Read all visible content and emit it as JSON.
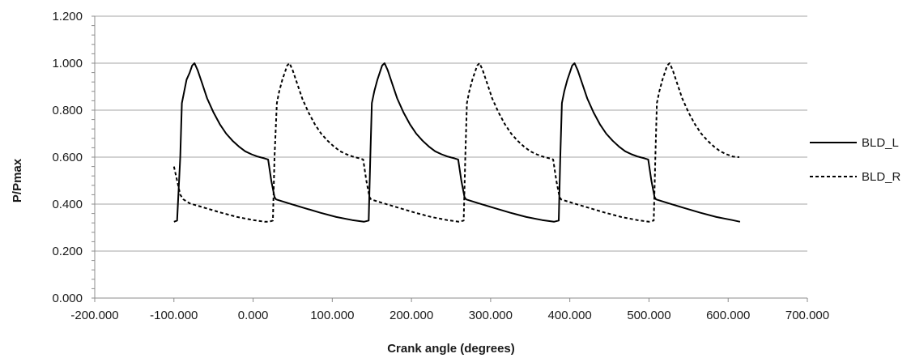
{
  "chart_data": {
    "type": "line",
    "title": "",
    "xlabel": "Crank angle (degrees)",
    "ylabel": "P/Pmax",
    "xlim": [
      -200,
      700
    ],
    "ylim": [
      0,
      1.2
    ],
    "x_ticks": [
      "-200.000",
      "-100.000",
      "0.000",
      "100.000",
      "200.000",
      "300.000",
      "400.000",
      "500.000",
      "600.000",
      "700.000"
    ],
    "y_ticks": [
      "0.000",
      "0.200",
      "0.400",
      "0.600",
      "0.800",
      "1.000",
      "1.200"
    ],
    "grid": "horizontal",
    "legend_position": "right",
    "series": [
      {
        "name": "BLD_L",
        "line_style": "solid",
        "color": "#000000",
        "x": [
          -100,
          -96,
          -92,
          -90,
          -87,
          -84,
          -80,
          -77,
          -74,
          -70,
          -64,
          -58,
          -50,
          -42,
          -34,
          -26,
          -18,
          -10,
          -2,
          6,
          14,
          19,
          23,
          27,
          29,
          45,
          65,
          85,
          105,
          125,
          140,
          146,
          148,
          150,
          153,
          157,
          160,
          163,
          166,
          170,
          176,
          182,
          190,
          198,
          206,
          214,
          222,
          230,
          238,
          246,
          254,
          259,
          263,
          267,
          269,
          285,
          305,
          325,
          345,
          365,
          380,
          386,
          388,
          390,
          393,
          397,
          400,
          403,
          406,
          410,
          416,
          422,
          430,
          438,
          446,
          454,
          462,
          470,
          478,
          486,
          494,
          499,
          503,
          507,
          509,
          525,
          545,
          565,
          585,
          605,
          615
        ],
        "y": [
          0.325,
          0.33,
          0.6,
          0.83,
          0.88,
          0.93,
          0.96,
          0.99,
          1.0,
          0.97,
          0.91,
          0.85,
          0.79,
          0.74,
          0.7,
          0.67,
          0.645,
          0.625,
          0.612,
          0.602,
          0.595,
          0.59,
          0.5,
          0.43,
          0.42,
          0.403,
          0.383,
          0.363,
          0.345,
          0.332,
          0.325,
          0.33,
          0.6,
          0.83,
          0.88,
          0.93,
          0.96,
          0.99,
          1.0,
          0.97,
          0.91,
          0.85,
          0.79,
          0.74,
          0.7,
          0.67,
          0.645,
          0.625,
          0.612,
          0.602,
          0.595,
          0.59,
          0.5,
          0.43,
          0.42,
          0.403,
          0.383,
          0.363,
          0.345,
          0.332,
          0.325,
          0.33,
          0.6,
          0.83,
          0.88,
          0.93,
          0.96,
          0.99,
          1.0,
          0.97,
          0.91,
          0.85,
          0.79,
          0.74,
          0.7,
          0.67,
          0.645,
          0.625,
          0.612,
          0.602,
          0.595,
          0.59,
          0.5,
          0.43,
          0.42,
          0.403,
          0.383,
          0.363,
          0.345,
          0.332,
          0.325
        ]
      },
      {
        "name": "BLD_R",
        "line_style": "dashed",
        "color": "#000000",
        "x": [
          -100,
          -92,
          -88,
          -80,
          -60,
          -40,
          -20,
          0,
          15,
          20,
          25,
          27,
          30,
          33,
          37,
          40,
          43,
          46,
          50,
          56,
          62,
          70,
          78,
          86,
          94,
          102,
          110,
          118,
          126,
          134,
          139,
          143,
          147,
          149,
          165,
          185,
          205,
          225,
          245,
          260,
          266,
          268,
          270,
          273,
          277,
          280,
          283,
          286,
          290,
          296,
          302,
          310,
          318,
          326,
          334,
          342,
          350,
          358,
          366,
          374,
          379,
          383,
          387,
          389,
          405,
          425,
          445,
          465,
          485,
          500,
          506,
          508,
          510,
          513,
          517,
          520,
          523,
          526,
          530,
          536,
          542,
          550,
          558,
          566,
          574,
          582,
          590,
          598,
          606,
          614
        ],
        "y": [
          0.56,
          0.44,
          0.42,
          0.403,
          0.383,
          0.363,
          0.345,
          0.332,
          0.325,
          0.325,
          0.33,
          0.6,
          0.83,
          0.88,
          0.93,
          0.96,
          0.99,
          1.0,
          0.97,
          0.91,
          0.85,
          0.79,
          0.74,
          0.7,
          0.67,
          0.645,
          0.625,
          0.612,
          0.602,
          0.595,
          0.59,
          0.5,
          0.43,
          0.42,
          0.403,
          0.383,
          0.363,
          0.345,
          0.332,
          0.325,
          0.33,
          0.6,
          0.83,
          0.88,
          0.93,
          0.96,
          0.99,
          1.0,
          0.97,
          0.91,
          0.85,
          0.79,
          0.74,
          0.7,
          0.67,
          0.645,
          0.625,
          0.612,
          0.602,
          0.595,
          0.59,
          0.5,
          0.43,
          0.42,
          0.403,
          0.383,
          0.363,
          0.345,
          0.332,
          0.325,
          0.33,
          0.6,
          0.83,
          0.88,
          0.93,
          0.96,
          0.99,
          1.0,
          0.97,
          0.91,
          0.85,
          0.79,
          0.74,
          0.7,
          0.67,
          0.645,
          0.625,
          0.612,
          0.602,
          0.6
        ]
      }
    ]
  }
}
